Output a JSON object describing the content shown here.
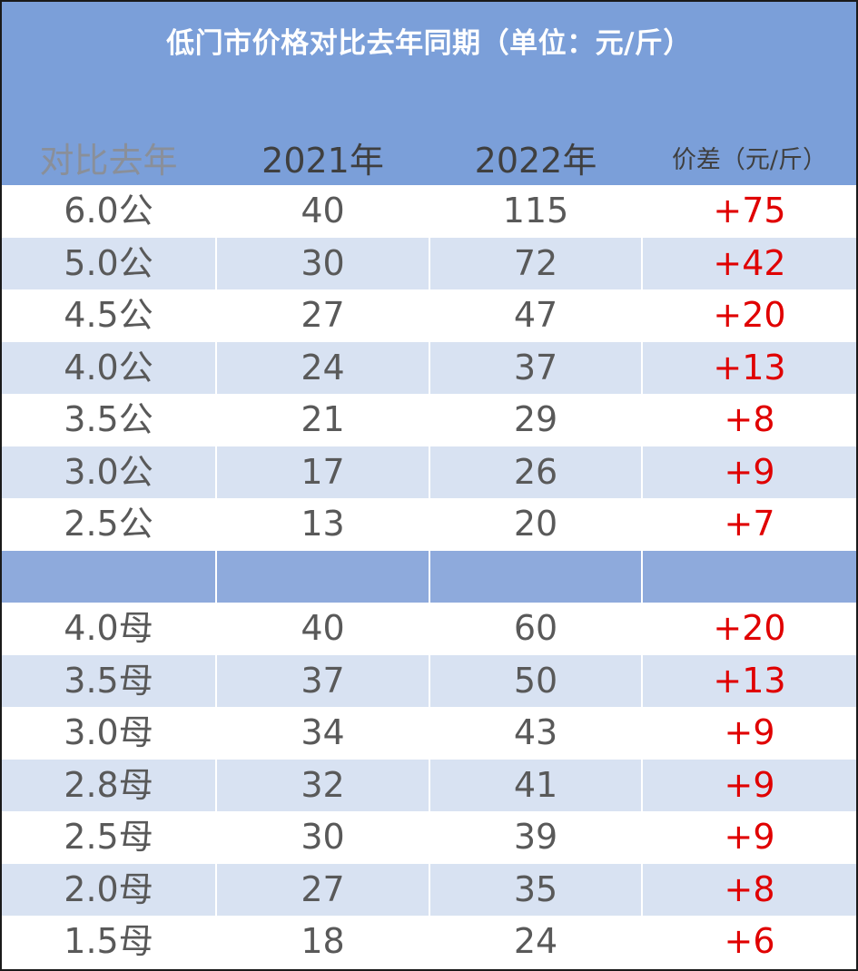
{
  "title": "低门市价格对比去年同期（单位：元/斤）",
  "columns": {
    "label": "对比去年",
    "year_2021": "2021年",
    "year_2022": "2022年",
    "diff": "价差（元/斤）"
  },
  "colors": {
    "header_bg": "#7b9fd9",
    "alt_row_bg": "#d8e2f2",
    "separator_bg": "#8eaadc",
    "diff_text": "#e00000",
    "body_text": "#595959"
  },
  "rows": [
    {
      "label": "6.0公",
      "y2021": "40",
      "y2022": "115",
      "diff": "+75"
    },
    {
      "label": "5.0公",
      "y2021": "30",
      "y2022": "72",
      "diff": "+42"
    },
    {
      "label": "4.5公",
      "y2021": "27",
      "y2022": "47",
      "diff": "+20"
    },
    {
      "label": "4.0公",
      "y2021": "24",
      "y2022": "37",
      "diff": "+13"
    },
    {
      "label": "3.5公",
      "y2021": "21",
      "y2022": "29",
      "diff": "+8"
    },
    {
      "label": "3.0公",
      "y2021": "17",
      "y2022": "26",
      "diff": "+9"
    },
    {
      "label": "2.5公",
      "y2021": "13",
      "y2022": "20",
      "diff": "+7"
    },
    {
      "label": "",
      "y2021": "",
      "y2022": "",
      "diff": ""
    },
    {
      "label": "4.0母",
      "y2021": "40",
      "y2022": "60",
      "diff": "+20"
    },
    {
      "label": "3.5母",
      "y2021": "37",
      "y2022": "50",
      "diff": "+13"
    },
    {
      "label": "3.0母",
      "y2021": "34",
      "y2022": "43",
      "diff": "+9"
    },
    {
      "label": "2.8母",
      "y2021": "32",
      "y2022": "41",
      "diff": "+9"
    },
    {
      "label": "2.5母",
      "y2021": "30",
      "y2022": "39",
      "diff": "+9"
    },
    {
      "label": "2.0母",
      "y2021": "27",
      "y2022": "35",
      "diff": "+8"
    },
    {
      "label": "1.5母",
      "y2021": "18",
      "y2022": "24",
      "diff": "+6"
    }
  ]
}
